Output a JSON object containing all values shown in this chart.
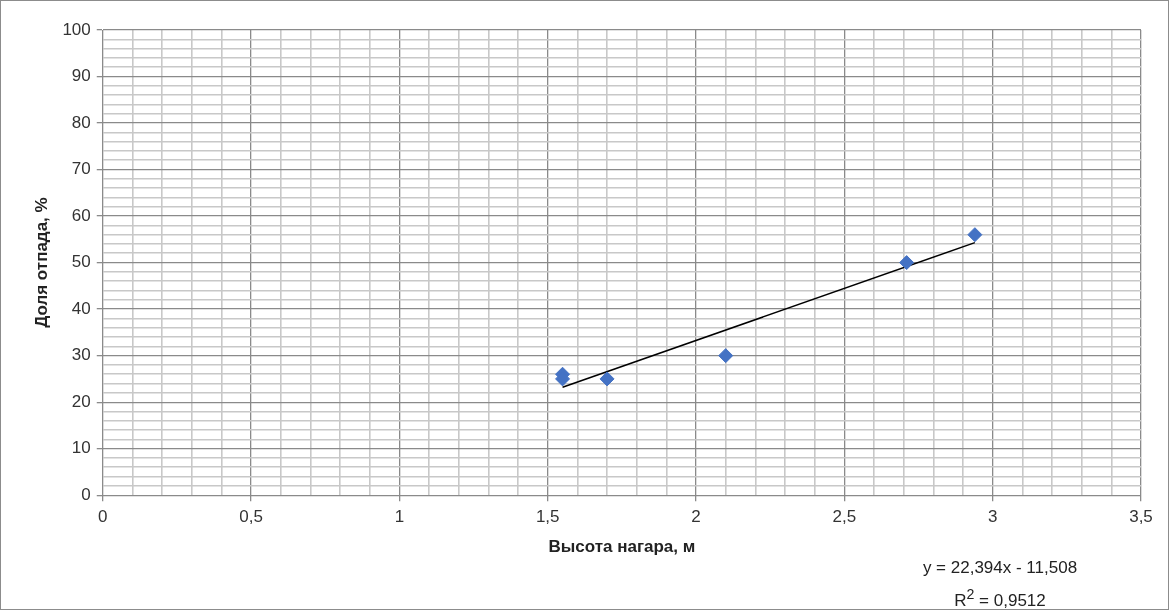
{
  "chart_data": {
    "type": "scatter",
    "xlabel": "Высота нагара, м",
    "ylabel": "Доля отпада, %",
    "xlim": [
      0,
      3.5
    ],
    "ylim": [
      0,
      100
    ],
    "xticks": [
      0,
      {
        "value": 0.1,
        "label": null
      },
      {
        "value": 0.2,
        "label": null
      },
      {
        "value": 0.3,
        "label": null
      },
      {
        "value": 0.4,
        "label": null
      },
      {
        "value": 0.5,
        "label": "0,5"
      },
      {
        "value": 0.6,
        "label": null
      },
      {
        "value": 0.7,
        "label": null
      },
      {
        "value": 0.8,
        "label": null
      },
      {
        "value": 0.9,
        "label": null
      },
      1,
      {
        "value": 1.1,
        "label": null
      },
      {
        "value": 1.2,
        "label": null
      },
      {
        "value": 1.3,
        "label": null
      },
      {
        "value": 1.4,
        "label": null
      },
      {
        "value": 1.5,
        "label": "1,5"
      },
      {
        "value": 1.6,
        "label": null
      },
      {
        "value": 1.7,
        "label": null
      },
      {
        "value": 1.8,
        "label": null
      },
      {
        "value": 1.9,
        "label": null
      },
      2,
      {
        "value": 2.1,
        "label": null
      },
      {
        "value": 2.2,
        "label": null
      },
      {
        "value": 2.3,
        "label": null
      },
      {
        "value": 2.4,
        "label": null
      },
      {
        "value": 2.5,
        "label": "2,5"
      },
      {
        "value": 2.6,
        "label": null
      },
      {
        "value": 2.7,
        "label": null
      },
      {
        "value": 2.8,
        "label": null
      },
      {
        "value": 2.9,
        "label": null
      },
      3,
      {
        "value": 3.1,
        "label": null
      },
      {
        "value": 3.2,
        "label": null
      },
      {
        "value": 3.3,
        "label": null
      },
      {
        "value": 3.4,
        "label": null
      },
      {
        "value": 3.5,
        "label": "3,5"
      }
    ],
    "yticks": [
      0,
      {
        "value": 2,
        "label": null
      },
      {
        "value": 4,
        "label": null
      },
      {
        "value": 6,
        "label": null
      },
      {
        "value": 8,
        "label": null
      },
      10,
      {
        "value": 12,
        "label": null
      },
      {
        "value": 14,
        "label": null
      },
      {
        "value": 16,
        "label": null
      },
      {
        "value": 18,
        "label": null
      },
      20,
      {
        "value": 22,
        "label": null
      },
      {
        "value": 24,
        "label": null
      },
      {
        "value": 26,
        "label": null
      },
      {
        "value": 28,
        "label": null
      },
      30,
      {
        "value": 32,
        "label": null
      },
      {
        "value": 34,
        "label": null
      },
      {
        "value": 36,
        "label": null
      },
      {
        "value": 38,
        "label": null
      },
      40,
      {
        "value": 42,
        "label": null
      },
      {
        "value": 44,
        "label": null
      },
      {
        "value": 46,
        "label": null
      },
      {
        "value": 48,
        "label": null
      },
      50,
      {
        "value": 52,
        "label": null
      },
      {
        "value": 54,
        "label": null
      },
      {
        "value": 56,
        "label": null
      },
      {
        "value": 58,
        "label": null
      },
      60,
      {
        "value": 62,
        "label": null
      },
      {
        "value": 64,
        "label": null
      },
      {
        "value": 66,
        "label": null
      },
      {
        "value": 68,
        "label": null
      },
      70,
      {
        "value": 72,
        "label": null
      },
      {
        "value": 74,
        "label": null
      },
      {
        "value": 76,
        "label": null
      },
      {
        "value": 78,
        "label": null
      },
      80,
      {
        "value": 82,
        "label": null
      },
      {
        "value": 84,
        "label": null
      },
      {
        "value": 86,
        "label": null
      },
      {
        "value": 88,
        "label": null
      },
      90,
      {
        "value": 92,
        "label": null
      },
      {
        "value": 94,
        "label": null
      },
      {
        "value": 96,
        "label": null
      },
      {
        "value": 98,
        "label": null
      },
      100
    ],
    "grid": true,
    "legend": false,
    "marker": "diamond",
    "series": [
      {
        "type": "scatter",
        "color": "#4472c4",
        "x": [
          1.55,
          1.55,
          1.7,
          2.1,
          2.71,
          2.94
        ],
        "values": [
          26,
          25,
          25,
          30,
          50,
          56
        ]
      },
      {
        "type": "line",
        "color": "#000000",
        "x": [
          1.55,
          2.94
        ],
        "values": [
          23.2,
          54.3
        ],
        "marker": "none",
        "line_style": "solid"
      }
    ],
    "annotations": [
      "y = 22,394x - 11,508",
      "R$^{2}$ = 0,9512"
    ]
  }
}
